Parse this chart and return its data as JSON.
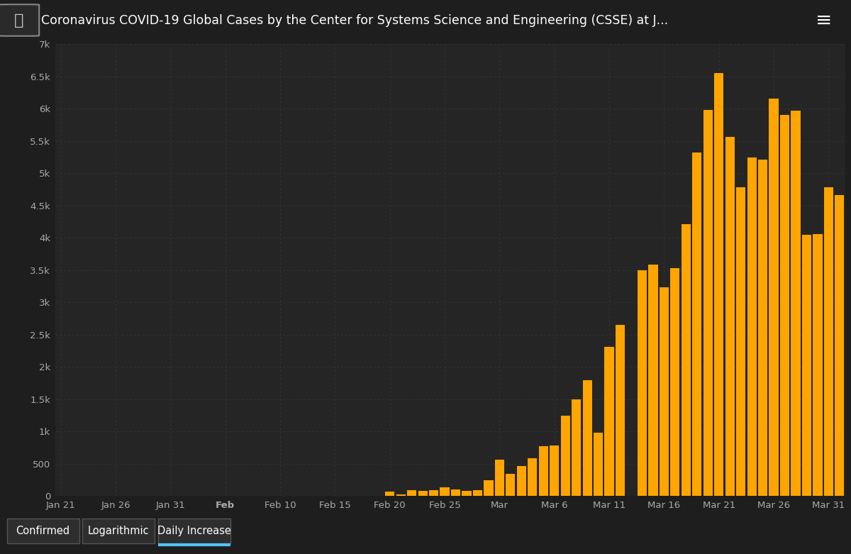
{
  "title": "Coronavirus COVID-19 Global Cases by the Center for Systems Science and Engineering (CSSE) at J...",
  "background_color": "#1e1e1e",
  "plot_bg_color": "#252525",
  "bar_color": "#FFA500",
  "grid_color": "#383838",
  "text_color": "#aaaaaa",
  "ylim": [
    0,
    7000
  ],
  "yticks": [
    0,
    500,
    1000,
    1500,
    2000,
    2500,
    3000,
    3500,
    4000,
    4500,
    5000,
    5500,
    6000,
    6500,
    7000
  ],
  "ytick_labels": [
    "0",
    "500",
    "1k",
    "1.5k",
    "2k",
    "2.5k",
    "3k",
    "3.5k",
    "4k",
    "4.5k",
    "5k",
    "5.5k",
    "6k",
    "6.5k",
    "7k"
  ],
  "values": [
    0,
    0,
    0,
    0,
    0,
    0,
    0,
    0,
    0,
    0,
    0,
    0,
    0,
    0,
    0,
    0,
    0,
    0,
    0,
    0,
    0,
    0,
    0,
    0,
    0,
    0,
    0,
    0,
    0,
    0,
    62,
    27,
    93,
    78,
    93,
    130,
    98,
    78,
    93,
    240,
    566,
    342,
    466,
    587,
    769,
    778,
    1247,
    1492,
    1797,
    977,
    2313,
    2651,
    0,
    3497,
    3590,
    3233,
    3526,
    4207,
    5322,
    5986,
    6557,
    5560,
    4789,
    5249,
    5210,
    6153,
    5909,
    5974,
    4050,
    4053,
    4782,
    4668
  ],
  "xtick_positions": [
    0,
    5,
    10,
    15,
    20,
    25,
    30,
    35,
    40,
    45,
    50,
    55,
    60,
    65,
    70
  ],
  "xtick_labels": [
    "Jan 21",
    "Jan 26",
    "Jan 31",
    "Feb",
    "Feb 10",
    "Feb 15",
    "Feb 20",
    "Feb 25",
    "Mar",
    "Mar 6",
    "Mar 11",
    "Mar 16",
    "Mar 21",
    "Mar 26",
    "Mar 31"
  ],
  "xtick_bold_indices": [
    3
  ],
  "footer_tabs": [
    "Confirmed",
    "Logarithmic",
    "Daily Increase"
  ],
  "footer_active": 2,
  "header_bg": "#222222",
  "footer_bg": "#1a1a1a",
  "active_tab_underline": "#4fc3f7"
}
